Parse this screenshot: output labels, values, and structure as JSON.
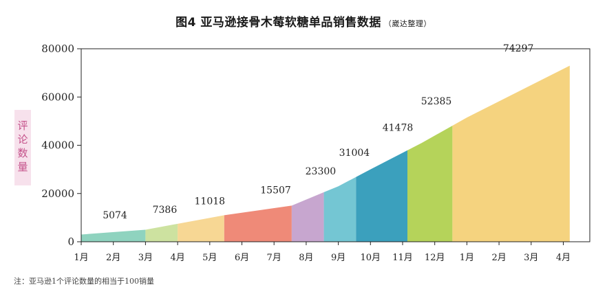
{
  "title": "图4  亚马逊接骨木莓软糖单品销售数据",
  "subtitle": "（崴达整理）",
  "note": "注：亚马逊1个评论数量的相当于100销量",
  "chart_data": {
    "type": "area",
    "ylabel": "评论数量",
    "ylim": [
      0,
      80000
    ],
    "yticks": [
      0,
      20000,
      40000,
      60000,
      80000
    ],
    "x_tick_labels": [
      "1月",
      "2月",
      "3月",
      "4月",
      "5月",
      "6月",
      "7月",
      "8月",
      "9月",
      "10月",
      "11月",
      "12月",
      "1月",
      "2月",
      "3月",
      "4月"
    ],
    "points": [
      {
        "x": 0,
        "y": 3000
      },
      {
        "x": 2,
        "y": 5000
      },
      {
        "x": 4.45,
        "y": 11000
      },
      {
        "x": 6.55,
        "y": 15000
      },
      {
        "x": 8,
        "y": 23000
      },
      {
        "x": 9,
        "y": 30000
      },
      {
        "x": 10.6,
        "y": 41000
      },
      {
        "x": 12,
        "y": 51500
      },
      {
        "x": 15.2,
        "y": 73000
      }
    ],
    "segments": [
      {
        "from": 0,
        "to": 2,
        "color": "#8fd3bf"
      },
      {
        "from": 2,
        "to": 3,
        "color": "#cde2a0"
      },
      {
        "from": 3,
        "to": 4.45,
        "color": "#f7d794"
      },
      {
        "from": 4.45,
        "to": 6.55,
        "color": "#ef8a78"
      },
      {
        "from": 6.55,
        "to": 7.55,
        "color": "#c7a6cf"
      },
      {
        "from": 7.55,
        "to": 8.55,
        "color": "#74c6d3"
      },
      {
        "from": 8.55,
        "to": 10.15,
        "color": "#3ba0bd"
      },
      {
        "from": 10.15,
        "to": 11.55,
        "color": "#b5d35a"
      },
      {
        "from": 11.55,
        "to": 15.2,
        "color": "#f5d37f"
      }
    ],
    "data_labels": [
      {
        "text": "5074",
        "x": 1.05,
        "y": 5074
      },
      {
        "text": "7386",
        "x": 2.6,
        "y": 7386
      },
      {
        "text": "11018",
        "x": 4.0,
        "y": 11018
      },
      {
        "text": "15507",
        "x": 6.05,
        "y": 15507
      },
      {
        "text": "23300",
        "x": 7.45,
        "y": 23300
      },
      {
        "text": "31004",
        "x": 8.5,
        "y": 31004
      },
      {
        "text": "41478",
        "x": 9.85,
        "y": 41478
      },
      {
        "text": "52385",
        "x": 11.05,
        "y": 52385
      },
      {
        "text": "74297",
        "x": 13.6,
        "y": 74297
      }
    ],
    "grid": false
  }
}
